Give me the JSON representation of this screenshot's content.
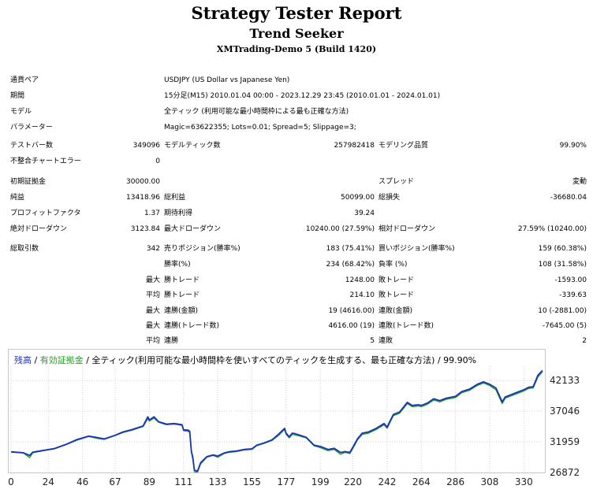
{
  "header": {
    "title": "Strategy Tester Report",
    "expert": "Trend Seeker",
    "server": "XMTrading-Demo 5 (Build 1420)"
  },
  "info": [
    {
      "label": "通貨ペア",
      "value": "USDJPY (US Dollar vs Japanese Yen)"
    },
    {
      "label": "期間",
      "value": "15分足(M15) 2010.01.04 00:00 - 2023.12.29 23:45 (2010.01.01 - 2024.01.01)"
    },
    {
      "label": "モデル",
      "value": "全ティック (利用可能な最小時間枠による最も正確な方法)"
    },
    {
      "label": "パラメーター",
      "value": "Magic=63622355; Lots=0.01; Spread=5; Slippage=3;"
    }
  ],
  "stats": {
    "bars_label": "テストバー数",
    "bars": "349096",
    "ticks_label": "モデルティック数",
    "ticks": "257982418",
    "quality_label": "モデリング品質",
    "quality": "99.90%",
    "mismatch_label": "不整合チャートエラー",
    "mismatch": "0",
    "deposit_label": "初期証拠金",
    "deposit": "30000.00",
    "spread_label": "スプレッド",
    "spread": "変動",
    "net_label": "純益",
    "net": "13418.96",
    "gross_profit_label": "総利益",
    "gross_profit": "50099.00",
    "gross_loss_label": "総損失",
    "gross_loss": "-36680.04",
    "pf_label": "プロフィットファクタ",
    "pf": "1.37",
    "expected_label": "期待利得",
    "expected": "39.24",
    "abs_dd_label": "絶対ドローダウン",
    "abs_dd": "3123.84",
    "max_dd_label": "最大ドローダウン",
    "max_dd": "10240.00 (27.59%)",
    "rel_dd_label": "相対ドローダウン",
    "rel_dd": "27.59% (10240.00)",
    "total_label": "総取引数",
    "total": "342",
    "short_label": "売りポジション(勝率%)",
    "short": "183 (75.41%)",
    "long_label": "買いポジション(勝率%)",
    "long": "159 (60.38%)",
    "win_label": "勝率(%)",
    "win": "234 (68.42%)",
    "loss_label": "負率 (%)",
    "loss": "108 (31.58%)",
    "largest": "最大",
    "largest_win_label": "勝トレード",
    "largest_win": "1248.00",
    "largest_loss_label": "敗トレード",
    "largest_loss": "-1593.00",
    "average": "平均",
    "avg_win_label": "勝トレード",
    "avg_win": "214.10",
    "avg_loss_label": "敗トレード",
    "avg_loss": "-339.63",
    "max_label": "最大",
    "cons_wins_label": "連勝(金額)",
    "cons_wins": "19 (4616.00)",
    "cons_losses_label": "連敗(金額)",
    "cons_losses": "10 (-2881.00)",
    "max2_label": "最大",
    "cons_profit_label": "連勝(トレード数)",
    "cons_profit": "4616.00 (19)",
    "cons_loss_label": "連敗(トレード数)",
    "cons_loss": "-7645.00 (5)",
    "avg2_label": "平均",
    "avg_cons_wins_label": "連勝",
    "avg_cons_wins": "5",
    "avg_cons_losses_label": "連敗",
    "avg_cons_losses": "2"
  },
  "legend": {
    "balance": "残高",
    "sep1": " / ",
    "equity": "有効証拠金",
    "rest": " / 全ティック(利用可能な最小時間枠を使いすべてのティックを生成する、最も正確な方法) / 99.90%"
  },
  "colors": {
    "balance": "#1d34b8",
    "equity": "#1aa31a",
    "grid": "#d0d0d0"
  },
  "chart_data": {
    "type": "line",
    "title": "",
    "xlabel": "",
    "ylabel": "",
    "x_ticks": [
      "0",
      "24",
      "46",
      "67",
      "89",
      "111",
      "133",
      "155",
      "177",
      "199",
      "220",
      "242",
      "264",
      "286",
      "308",
      "330"
    ],
    "y_ticks": [
      "42133",
      "37046",
      "31959",
      "26872"
    ],
    "xlim": [
      0,
      342
    ],
    "ylim": [
      26872,
      44500
    ],
    "series": [
      {
        "name": "残高",
        "x": [
          0,
          8,
          12,
          14,
          20,
          28,
          36,
          42,
          50,
          55,
          60,
          67,
          72,
          78,
          85,
          88,
          89,
          92,
          95,
          100,
          105,
          110,
          111,
          114,
          115,
          116,
          117,
          118,
          120,
          122,
          126,
          130,
          133,
          137,
          140,
          145,
          150,
          155,
          158,
          163,
          168,
          172,
          176,
          177,
          179,
          181,
          183,
          186,
          190,
          195,
          199,
          204,
          208,
          212,
          215,
          218,
          220,
          223,
          226,
          230,
          235,
          240,
          242,
          246,
          250,
          255,
          258,
          262,
          264,
          268,
          272,
          276,
          280,
          286,
          290,
          295,
          300,
          304,
          308,
          312,
          316,
          318,
          322,
          326,
          330,
          333,
          336,
          339,
          342
        ],
        "y": [
          30300,
          30150,
          29700,
          30250,
          30500,
          30850,
          31600,
          32300,
          32900,
          32700,
          32450,
          33050,
          33600,
          34000,
          34600,
          36100,
          35600,
          36100,
          35300,
          34900,
          35000,
          34800,
          33950,
          33900,
          33700,
          30500,
          29300,
          27300,
          27100,
          28500,
          29500,
          29800,
          29600,
          30100,
          30300,
          30450,
          30700,
          30800,
          31400,
          31800,
          32300,
          33200,
          34200,
          33400,
          32800,
          33400,
          33300,
          33050,
          32700,
          31400,
          31200,
          30700,
          30900,
          30200,
          30350,
          30200,
          31100,
          32500,
          33400,
          33600,
          34200,
          35000,
          34400,
          36500,
          36900,
          38500,
          38000,
          38100,
          38000,
          38400,
          39100,
          38800,
          39200,
          39500,
          40300,
          40700,
          41500,
          41900,
          41500,
          40900,
          38600,
          39400,
          39800,
          40200,
          40600,
          41000,
          41100,
          43000,
          43800
        ]
      },
      {
        "name": "有効証拠金",
        "x": [
          0,
          8,
          12,
          14,
          20,
          28,
          36,
          42,
          50,
          55,
          60,
          67,
          72,
          78,
          85,
          88,
          89,
          92,
          95,
          100,
          105,
          110,
          111,
          114,
          115,
          116,
          117,
          118,
          120,
          122,
          126,
          130,
          133,
          137,
          140,
          145,
          150,
          155,
          158,
          163,
          168,
          172,
          176,
          177,
          179,
          181,
          183,
          186,
          190,
          195,
          199,
          204,
          208,
          212,
          215,
          218,
          220,
          223,
          226,
          230,
          235,
          240,
          242,
          246,
          250,
          255,
          258,
          262,
          264,
          268,
          272,
          276,
          280,
          286,
          290,
          295,
          300,
          304,
          308,
          312,
          316,
          318,
          322,
          326,
          330,
          333,
          336,
          339,
          342
        ],
        "y": [
          30250,
          30100,
          29350,
          30150,
          30450,
          30800,
          31550,
          32200,
          32850,
          32550,
          32350,
          33000,
          33500,
          33900,
          34500,
          35800,
          35400,
          35900,
          35200,
          34800,
          34900,
          34700,
          33800,
          33700,
          33500,
          30300,
          29000,
          27000,
          26950,
          28300,
          29400,
          29700,
          29400,
          30000,
          30200,
          30350,
          30600,
          30700,
          31300,
          31700,
          32200,
          33000,
          34000,
          33200,
          32600,
          33200,
          33100,
          32900,
          32600,
          31300,
          31000,
          30500,
          30700,
          29900,
          30200,
          30000,
          30900,
          32300,
          33200,
          33400,
          34000,
          34800,
          34200,
          36300,
          36700,
          38300,
          37800,
          37900,
          37800,
          38200,
          38900,
          38600,
          39000,
          39300,
          40100,
          40500,
          41300,
          41700,
          41300,
          40600,
          38300,
          39200,
          39600,
          40000,
          40400,
          40800,
          40900,
          42700,
          43600
        ]
      }
    ]
  }
}
